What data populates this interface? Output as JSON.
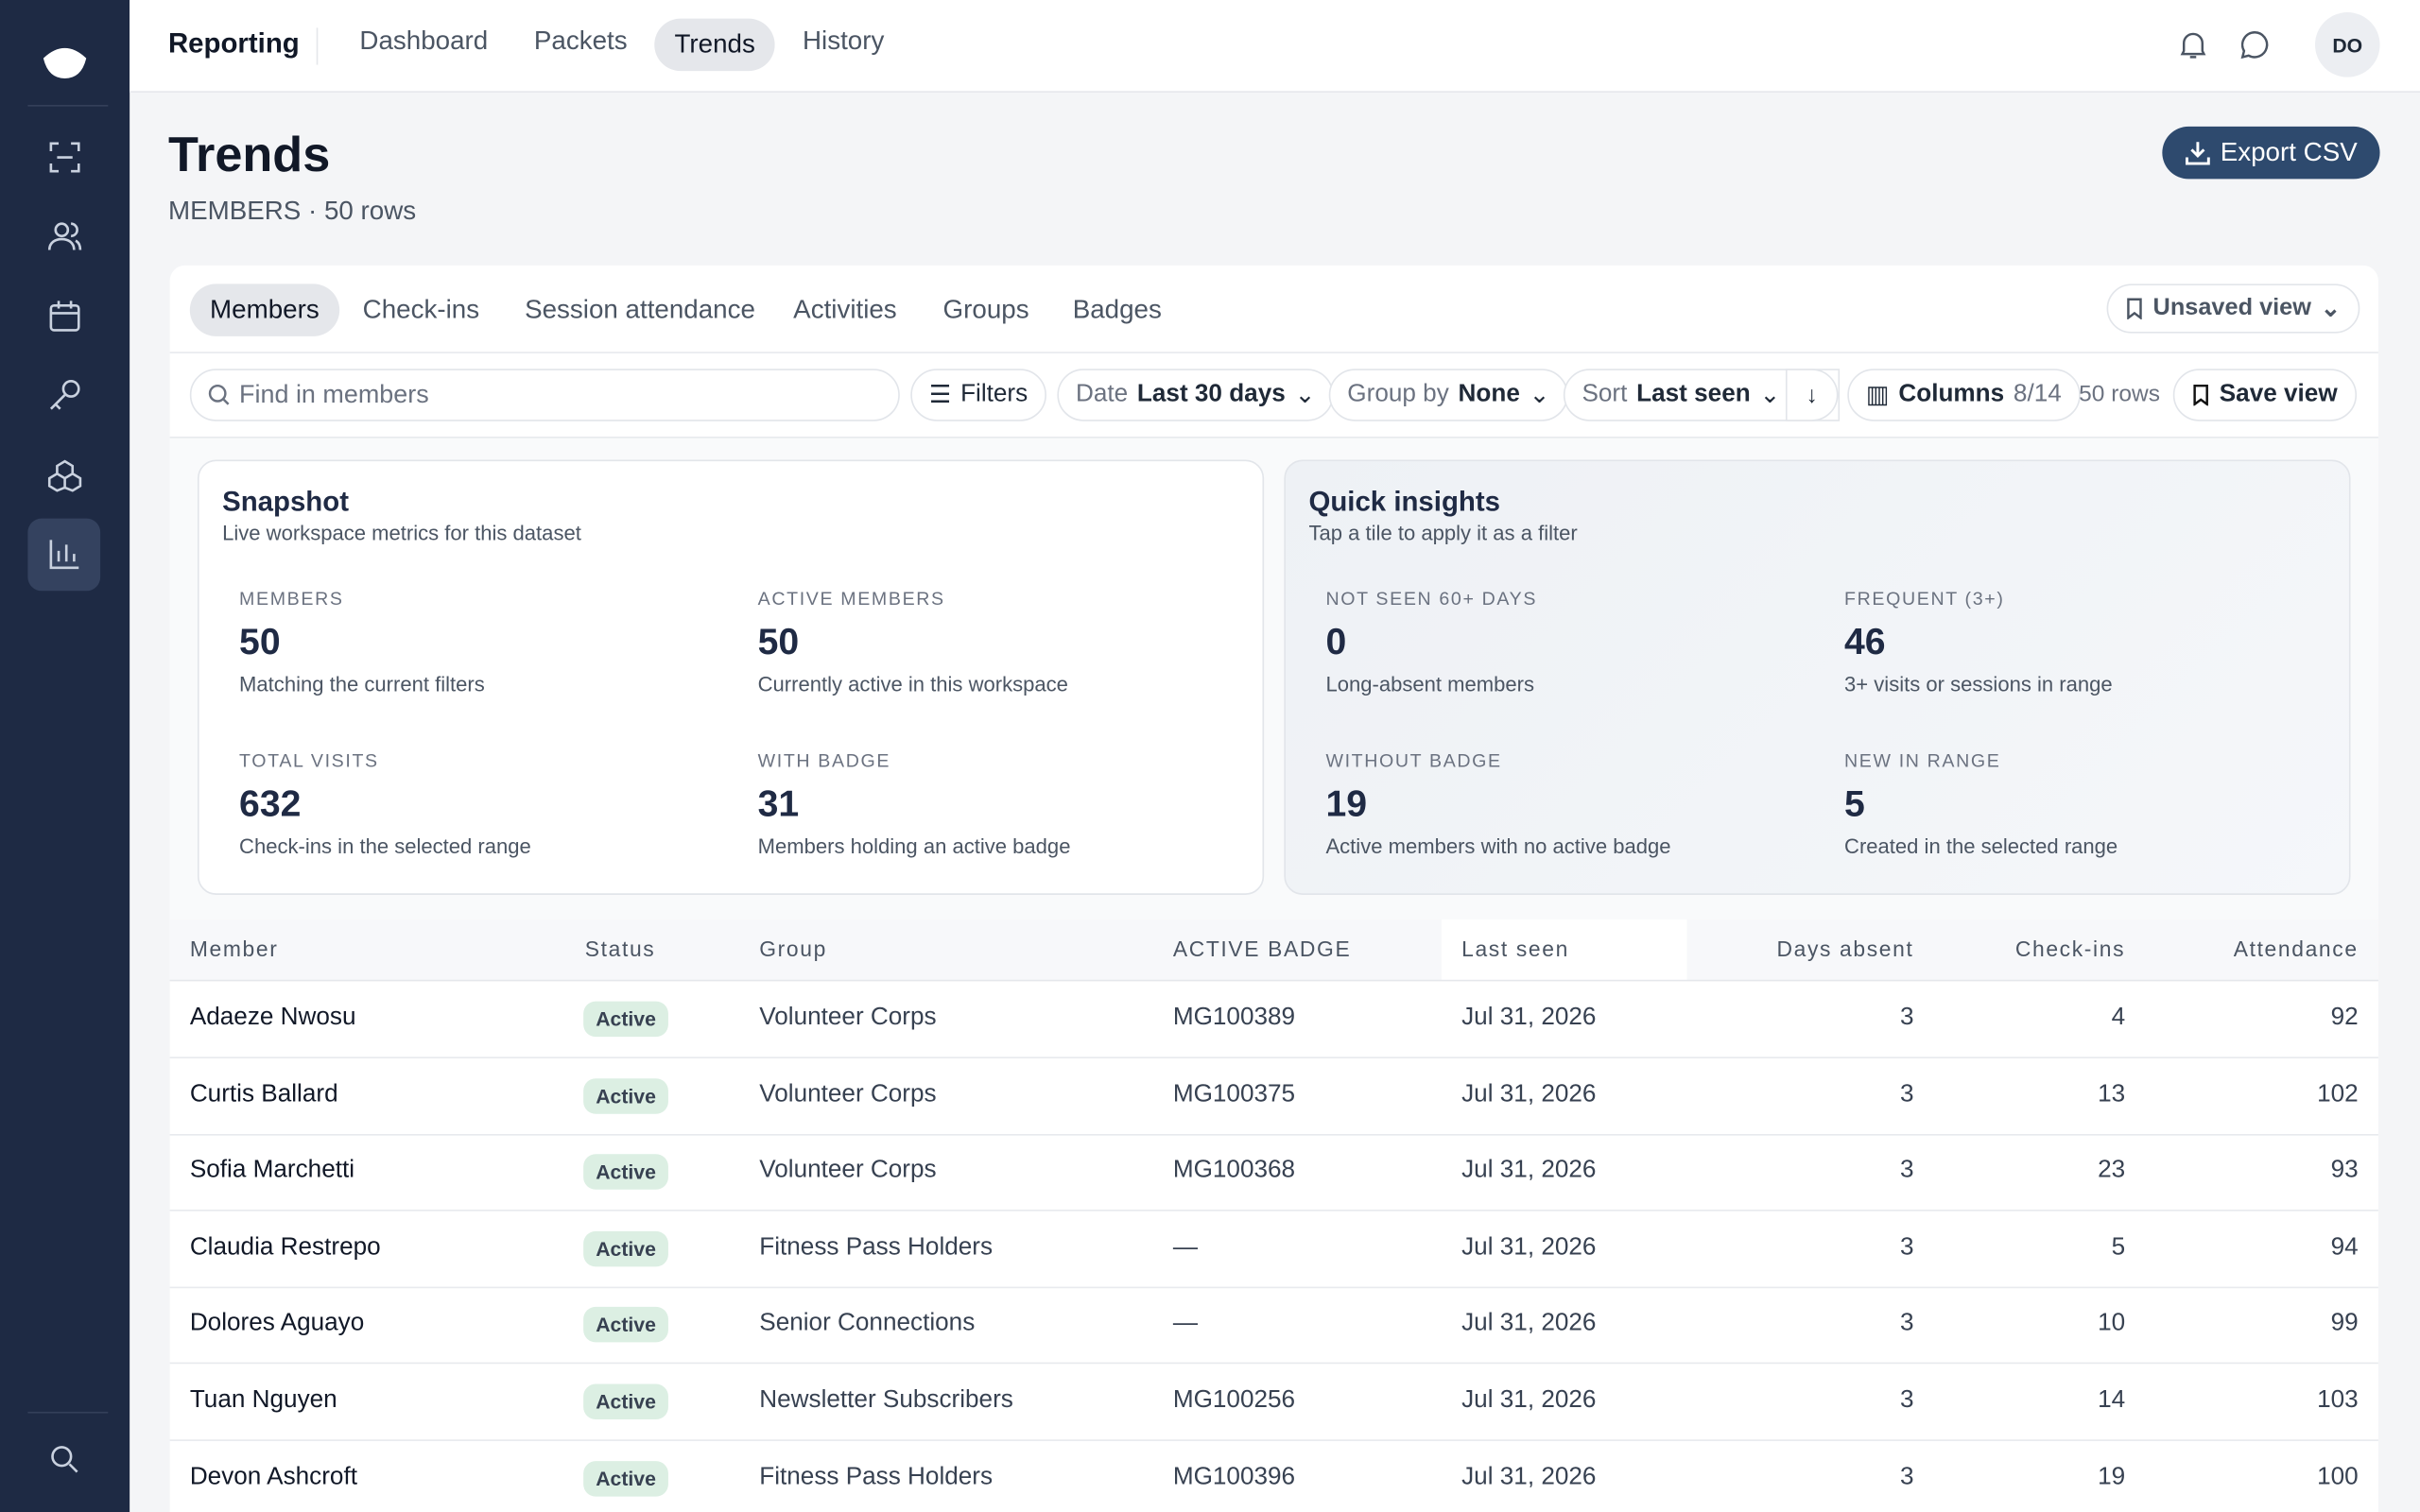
{
  "topbar": {
    "brand": "Reporting",
    "links": [
      "Dashboard",
      "Packets",
      "Trends",
      "History"
    ],
    "avatar": "DO"
  },
  "header": {
    "title": "Trends",
    "subtitle": "MEMBERS · 50 rows",
    "export": "Export CSV"
  },
  "tabs": {
    "items": [
      "Members",
      "Check-ins",
      "Session attendance",
      "Activities",
      "Groups",
      "Badges"
    ],
    "view": "Unsaved view"
  },
  "toolbar": {
    "search": "Find in members",
    "filters": "Filters",
    "date_label": "Date",
    "date_value": "Last 30 days",
    "group_label": "Group by",
    "group_value": "None",
    "sort_label": "Sort",
    "sort_value": "Last seen",
    "columns_label": "Columns",
    "columns_value": "8/14",
    "rows": "50 rows",
    "save": "Save view"
  },
  "snapshot": {
    "title": "Snapshot",
    "subtitle": "Live workspace metrics for this dataset",
    "metrics": [
      {
        "label": "MEMBERS",
        "value": 50,
        "desc": "Matching the current filters"
      },
      {
        "label": "ACTIVE MEMBERS",
        "value": 50,
        "desc": "Currently active in this workspace"
      },
      {
        "label": "TOTAL VISITS",
        "value": 632,
        "desc": "Check-ins in the selected range"
      },
      {
        "label": "WITH BADGE",
        "value": 31,
        "desc": "Members holding an active badge"
      }
    ]
  },
  "insights": {
    "title": "Quick insights",
    "subtitle": "Tap a tile to apply it as a filter",
    "metrics": [
      {
        "label": "NOT SEEN 60+ DAYS",
        "value": 0,
        "desc": "Long-absent members"
      },
      {
        "label": "FREQUENT (3+)",
        "value": 46,
        "desc": "3+ visits or sessions in range"
      },
      {
        "label": "WITHOUT BADGE",
        "value": 19,
        "desc": "Active members with no active badge"
      },
      {
        "label": "NEW IN RANGE",
        "value": 5,
        "desc": "Created in the selected range"
      }
    ]
  },
  "table": {
    "columns": [
      "Member",
      "Status",
      "Group",
      "ACTIVE BADGE",
      "Last seen",
      "Days absent",
      "Check-ins",
      "Attendance"
    ],
    "rows": [
      [
        "Adaeze Nwosu",
        "Active",
        "Volunteer Corps",
        "MG100389",
        "Jul 31, 2026",
        3,
        4,
        92
      ],
      [
        "Curtis Ballard",
        "Active",
        "Volunteer Corps",
        "MG100375",
        "Jul 31, 2026",
        3,
        13,
        102
      ],
      [
        "Sofia Marchetti",
        "Active",
        "Volunteer Corps",
        "MG100368",
        "Jul 31, 2026",
        3,
        23,
        93
      ],
      [
        "Claudia Restrepo",
        "Active",
        "Fitness Pass Holders",
        "—",
        "Jul 31, 2026",
        3,
        5,
        94
      ],
      [
        "Dolores Aguayo",
        "Active",
        "Senior Connections",
        "—",
        "Jul 31, 2026",
        3,
        10,
        99
      ],
      [
        "Tuan Nguyen",
        "Active",
        "Newsletter Subscribers",
        "MG100256",
        "Jul 31, 2026",
        3,
        14,
        103
      ],
      [
        "Devon Ashcroft",
        "Active",
        "Fitness Pass Holders",
        "MG100396",
        "Jul 31, 2026",
        3,
        19,
        100
      ]
    ]
  }
}
